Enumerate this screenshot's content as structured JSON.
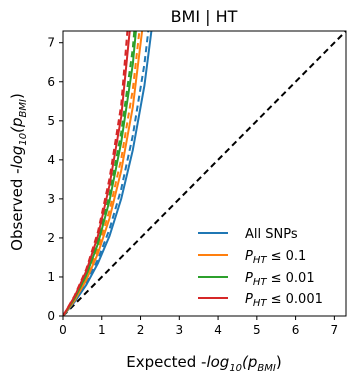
{
  "chart_data": {
    "type": "line",
    "title": "BMI | HT",
    "xlabel": {
      "prefix": "Expected -",
      "func": "log",
      "func_sub": "10",
      "arg_open": "(p",
      "arg_sub": "BMI",
      "arg_close": ")"
    },
    "ylabel": {
      "prefix": "Observed -",
      "func": "log",
      "func_sub": "10",
      "arg_open": "(p",
      "arg_sub": "BMI",
      "arg_close": ")"
    },
    "xlim": [
      0,
      7.3
    ],
    "ylim": [
      0,
      7.3
    ],
    "xticks": [
      0,
      1,
      2,
      3,
      4,
      5,
      6,
      7
    ],
    "yticks": [
      0,
      1,
      2,
      3,
      4,
      5,
      6,
      7
    ],
    "grid": false,
    "legend_position": "lower-right",
    "reference_line": {
      "x": [
        0,
        7.3
      ],
      "y": [
        0,
        7.3
      ],
      "style": "dashed",
      "color": "#000000"
    },
    "series": [
      {
        "name": "All SNPs",
        "color": "#1f77b4",
        "legend": {
          "text": "All SNPs"
        },
        "x": [
          0,
          0.3,
          0.6,
          0.9,
          1.2,
          1.5,
          1.8,
          2.1,
          2.28
        ],
        "y": [
          0,
          0.36,
          0.8,
          1.35,
          2.05,
          3.0,
          4.25,
          5.9,
          7.3
        ]
      },
      {
        "name": "P_HT ≤ 0.1",
        "color": "#ff7f0e",
        "legend": {
          "main": "P",
          "sub": "HT",
          "rest": " ≤ 0.1"
        },
        "x": [
          0,
          0.3,
          0.6,
          0.9,
          1.2,
          1.5,
          1.8,
          2.04
        ],
        "y": [
          0,
          0.4,
          0.92,
          1.6,
          2.5,
          3.72,
          5.35,
          7.3
        ]
      },
      {
        "name": "P_HT ≤ 0.01",
        "color": "#2ca02c",
        "legend": {
          "main": "P",
          "sub": "HT",
          "rest": " ≤ 0.01"
        },
        "x": [
          0,
          0.3,
          0.6,
          0.9,
          1.2,
          1.5,
          1.8,
          1.88
        ],
        "y": [
          0,
          0.45,
          1.04,
          1.85,
          2.95,
          4.45,
          6.45,
          7.3
        ]
      },
      {
        "name": "P_HT ≤ 0.001",
        "color": "#d62728",
        "legend": {
          "main": "P",
          "sub": "HT",
          "rest": " ≤ 0.001"
        },
        "x": [
          0,
          0.3,
          0.6,
          0.9,
          1.2,
          1.5,
          1.72
        ],
        "y": [
          0,
          0.5,
          1.15,
          2.05,
          3.35,
          5.1,
          7.3
        ]
      }
    ],
    "confidence_bands": [
      {
        "series": "All SNPs",
        "style": "dashed",
        "color": "#1f77b4",
        "x": [
          0,
          0.3,
          0.6,
          0.9,
          1.2,
          1.5,
          1.8,
          2.1,
          2.2
        ],
        "y": [
          0,
          0.38,
          0.86,
          1.45,
          2.22,
          3.25,
          4.62,
          6.45,
          7.3
        ]
      },
      {
        "series": "P_HT ≤ 0.1",
        "style": "dashed",
        "color": "#ff7f0e",
        "x": [
          0,
          0.3,
          0.6,
          0.9,
          1.2,
          1.5,
          1.8,
          1.97
        ],
        "y": [
          0,
          0.42,
          0.98,
          1.72,
          2.7,
          4.02,
          5.8,
          7.3
        ]
      },
      {
        "series": "P_HT ≤ 0.01",
        "style": "dashed",
        "color": "#2ca02c",
        "x": [
          0,
          0.3,
          0.6,
          0.9,
          1.2,
          1.5,
          1.8,
          1.84
        ],
        "y": [
          0,
          0.47,
          1.09,
          1.95,
          3.1,
          4.7,
          6.85,
          7.3
        ]
      },
      {
        "series": "P_HT ≤ 0.001",
        "style": "dashed",
        "color": "#d62728",
        "x": [
          0,
          0.3,
          0.6,
          0.9,
          1.2,
          1.5,
          1.66
        ],
        "y": [
          0,
          0.52,
          1.2,
          2.15,
          3.52,
          5.4,
          7.3
        ]
      }
    ]
  }
}
